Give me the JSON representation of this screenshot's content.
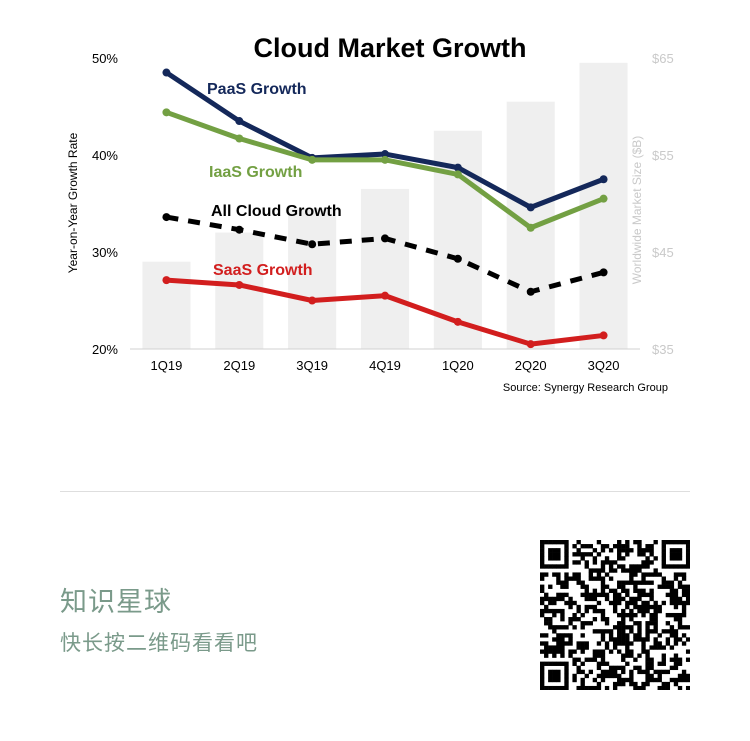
{
  "chart_data": {
    "type": "line",
    "title": "Cloud Market Growth",
    "ylabel": "Year-on-Year Growth Rate",
    "y2label": "Worldwide Market Size ($B)",
    "source": "Source: Synergy Research Group",
    "categories": [
      "1Q19",
      "2Q19",
      "3Q19",
      "4Q19",
      "1Q20",
      "2Q20",
      "3Q20"
    ],
    "ylim": [
      20,
      50
    ],
    "yticks": [
      "20%",
      "30%",
      "40%",
      "50%"
    ],
    "y2lim": [
      35,
      65
    ],
    "y2ticks": [
      "$35",
      "$45",
      "$55",
      "$65"
    ],
    "bars": {
      "color": "#efefef",
      "values": [
        44,
        47,
        49.5,
        51.5,
        57.5,
        60.5,
        64.5
      ]
    },
    "series": [
      {
        "name": "PaaS Growth",
        "color": "#14285a",
        "dashed": false,
        "values": [
          48.5,
          43.5,
          39.7,
          40.1,
          38.7,
          34.6,
          37.5
        ]
      },
      {
        "name": "IaaS Growth",
        "color": "#73a043",
        "dashed": false,
        "values": [
          44.4,
          41.7,
          39.5,
          39.5,
          38.0,
          32.5,
          35.5
        ]
      },
      {
        "name": "All Cloud Growth",
        "color": "#000000",
        "dashed": true,
        "values": [
          33.6,
          32.3,
          30.8,
          31.4,
          29.3,
          25.9,
          27.9
        ]
      },
      {
        "name": "SaaS Growth",
        "color": "#d21e1e",
        "dashed": false,
        "values": [
          27.1,
          26.6,
          25.0,
          25.5,
          22.8,
          20.5,
          21.4
        ]
      }
    ]
  },
  "footer": {
    "title": "知识星球",
    "subtitle": "快长按二维码看看吧"
  }
}
